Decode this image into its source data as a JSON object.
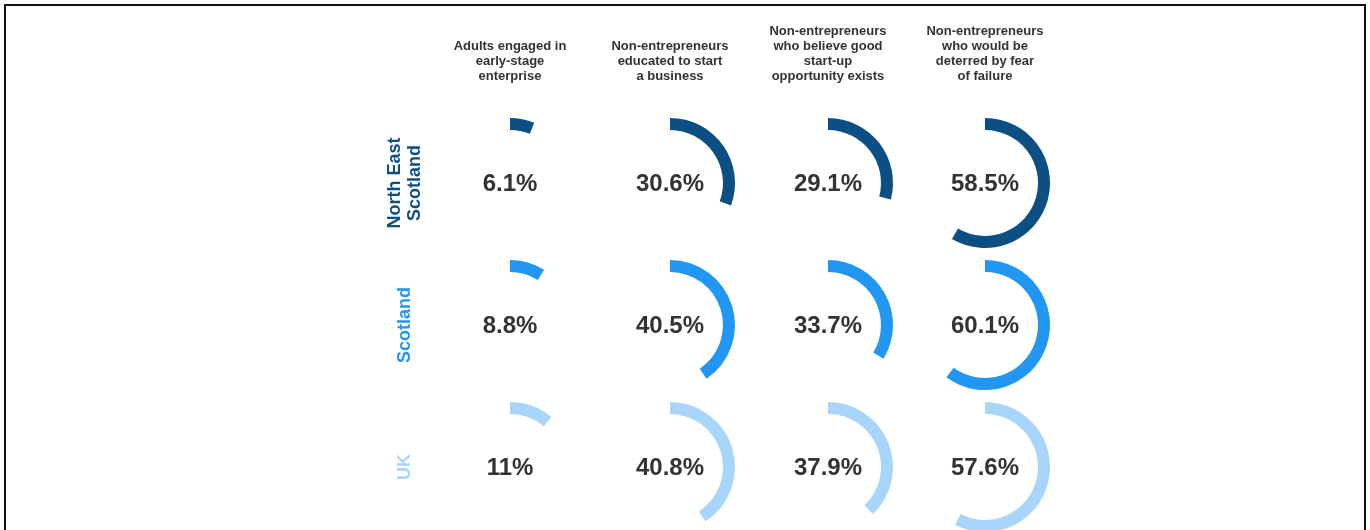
{
  "chart_data": {
    "type": "other",
    "categories": [
      "Adults engaged in early-stage enterprise",
      "Non-entrepreneurs educated to start a business",
      "Non-entrepreneurs who believe good start-up opportunity exists",
      "Non-entrepreneurs who would be deterred by fear of failure"
    ],
    "series": [
      {
        "name": "North East Scotland",
        "color": "#0b4f85",
        "values": [
          6.1,
          30.6,
          29.1,
          58.5
        ],
        "value_labels": [
          "6.1%",
          "30.6%",
          "29.1%",
          "58.5%"
        ]
      },
      {
        "name": "Scotland",
        "color": "#2196f3",
        "values": [
          8.8,
          40.5,
          33.7,
          60.1
        ],
        "value_labels": [
          "8.8%",
          "40.5%",
          "33.7%",
          "60.1%"
        ]
      },
      {
        "name": "UK",
        "color": "#a8d5fb",
        "values": [
          11,
          40.8,
          37.9,
          57.6
        ],
        "value_labels": [
          "11%",
          "40.8%",
          "37.9%",
          "57.6%"
        ]
      }
    ],
    "legend": false
  }
}
